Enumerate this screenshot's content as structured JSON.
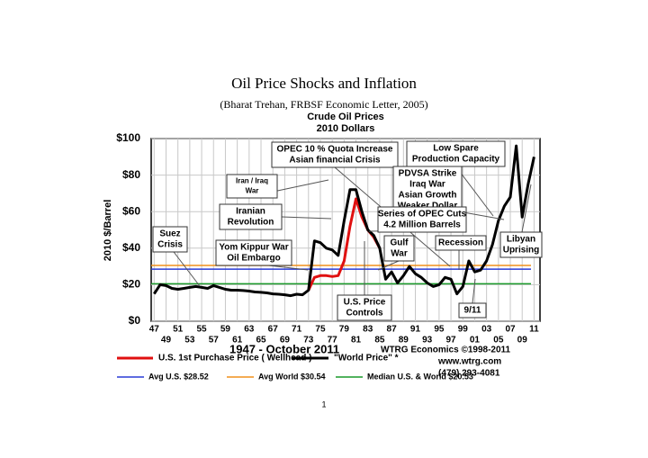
{
  "page_title": "Oil Price Shocks and Inflation",
  "page_subtitle": "(Bharat Trehan, FRBSF Economic Letter, 2005)",
  "page_number": "1",
  "chart_data": {
    "type": "line",
    "title": "Crude Oil Prices",
    "subtitle": "2010 Dollars",
    "y_label": "2010 $/Barrel",
    "period": "1947 - October 2011",
    "credit": "WTRG Economics  ©1998-2011",
    "website": "www.wtrg.com",
    "phone": "(479) 293-4081",
    "x": [
      1947,
      1948,
      1949,
      1950,
      1951,
      1952,
      1953,
      1954,
      1955,
      1956,
      1957,
      1958,
      1959,
      1960,
      1961,
      1962,
      1963,
      1964,
      1965,
      1966,
      1967,
      1968,
      1969,
      1970,
      1971,
      1972,
      1973,
      1974,
      1975,
      1976,
      1977,
      1978,
      1979,
      1980,
      1981,
      1982,
      1983,
      1984,
      1985,
      1986,
      1987,
      1988,
      1989,
      1990,
      1991,
      1992,
      1993,
      1994,
      1995,
      1996,
      1997,
      1998,
      1999,
      2000,
      2001,
      2002,
      2003,
      2004,
      2005,
      2006,
      2007,
      2008,
      2009,
      2010,
      2011
    ],
    "series": [
      {
        "name": "U.S. 1st Purchase Price ( Wellhead )",
        "color": "#e01010",
        "values": [
          null,
          null,
          null,
          null,
          null,
          null,
          null,
          null,
          null,
          null,
          null,
          null,
          null,
          null,
          null,
          null,
          null,
          null,
          null,
          null,
          null,
          null,
          null,
          null,
          null,
          null,
          17,
          24,
          25,
          25,
          24.5,
          25,
          33,
          52,
          67,
          57,
          50,
          46,
          40,
          null,
          null,
          null,
          null,
          null,
          null,
          null,
          null,
          null,
          null,
          null,
          null,
          null,
          null,
          null,
          null,
          null,
          null,
          null,
          null,
          null,
          null,
          null,
          null,
          null,
          null
        ]
      },
      {
        "name": "\"World Price\" *",
        "color": "#000000",
        "values": [
          15,
          20,
          19.5,
          18,
          17.5,
          18,
          18.5,
          19,
          18.5,
          18,
          19.5,
          18.5,
          17.5,
          17,
          17,
          16.8,
          16.5,
          16,
          15.8,
          15.5,
          15,
          14.8,
          14.5,
          14,
          14.8,
          14.5,
          17,
          44,
          43,
          40,
          39,
          36,
          55,
          72,
          72,
          60,
          50,
          47,
          40,
          23,
          27,
          21,
          25,
          30,
          26,
          24,
          21,
          19,
          20,
          24,
          23,
          15,
          19,
          33,
          27,
          28,
          33,
          42,
          55,
          63,
          68,
          96,
          57,
          75,
          90
        ]
      }
    ],
    "reference_lines": [
      {
        "name": "Avg U.S. $28.52",
        "value": 28.52,
        "color": "#2a3bd6"
      },
      {
        "name": "Avg World $30.54",
        "value": 30.54,
        "color": "#f0901c"
      },
      {
        "name": "Median U.S. & World  $20.53",
        "value": 20.53,
        "color": "#1a9a2a"
      }
    ],
    "xlim": [
      1946.5,
      2012
    ],
    "ylim": [
      0,
      100
    ],
    "yticks": [
      {
        "value": 0,
        "label": "$0"
      },
      {
        "value": 20,
        "label": "$20"
      },
      {
        "value": 40,
        "label": "$40"
      },
      {
        "value": 60,
        "label": "$60"
      },
      {
        "value": 80,
        "label": "$80"
      },
      {
        "value": 100,
        "label": "$100"
      }
    ],
    "xticks": [
      {
        "value": 1947,
        "label": "47"
      },
      {
        "value": 1949,
        "label": "49"
      },
      {
        "value": 1951,
        "label": "51"
      },
      {
        "value": 1953,
        "label": "53"
      },
      {
        "value": 1955,
        "label": "55"
      },
      {
        "value": 1957,
        "label": "57"
      },
      {
        "value": 1959,
        "label": "59"
      },
      {
        "value": 1961,
        "label": "61"
      },
      {
        "value": 1963,
        "label": "63"
      },
      {
        "value": 1965,
        "label": "65"
      },
      {
        "value": 1967,
        "label": "67"
      },
      {
        "value": 1969,
        "label": "69"
      },
      {
        "value": 1971,
        "label": "71"
      },
      {
        "value": 1973,
        "label": "73"
      },
      {
        "value": 1975,
        "label": "75"
      },
      {
        "value": 1977,
        "label": "77"
      },
      {
        "value": 1979,
        "label": "79"
      },
      {
        "value": 1981,
        "label": "81"
      },
      {
        "value": 1983,
        "label": "83"
      },
      {
        "value": 1985,
        "label": "85"
      },
      {
        "value": 1987,
        "label": "87"
      },
      {
        "value": 1989,
        "label": "89"
      },
      {
        "value": 1991,
        "label": "91"
      },
      {
        "value": 1993,
        "label": "93"
      },
      {
        "value": 1995,
        "label": "95"
      },
      {
        "value": 1997,
        "label": "97"
      },
      {
        "value": 1999,
        "label": "99"
      },
      {
        "value": 2001,
        "label": "01"
      },
      {
        "value": 2003,
        "label": "03"
      },
      {
        "value": 2005,
        "label": "05"
      },
      {
        "value": 2007,
        "label": "07"
      },
      {
        "value": 2009,
        "label": "09"
      },
      {
        "value": 2011,
        "label": "11"
      }
    ],
    "grid": true,
    "annotations": [
      {
        "lines": [
          "OPEC 10 % Quota Increase",
          "Asian financial Crisis"
        ]
      },
      {
        "lines": [
          "Low Spare",
          "Production Capacity"
        ]
      },
      {
        "lines": [
          "PDVSA Strike",
          "Iraq War",
          "Asian Growth",
          "Weaker Dollar"
        ]
      },
      {
        "lines": [
          "Iran / Iraq",
          "War"
        ]
      },
      {
        "lines": [
          "Iranian",
          "Revolution"
        ]
      },
      {
        "lines": [
          "Series of OPEC Cuts",
          "4.2 Million Barrels"
        ]
      },
      {
        "lines": [
          "Suez",
          "Crisis"
        ]
      },
      {
        "lines": [
          "Yom Kippur War",
          "Oil Embargo"
        ]
      },
      {
        "lines": [
          "Gulf",
          "War"
        ]
      },
      {
        "lines": [
          "Recession"
        ]
      },
      {
        "lines": [
          "Libyan",
          "Uprising"
        ]
      },
      {
        "lines": [
          "U.S. Price",
          "Controls"
        ]
      },
      {
        "lines": [
          "9/11"
        ]
      }
    ]
  }
}
